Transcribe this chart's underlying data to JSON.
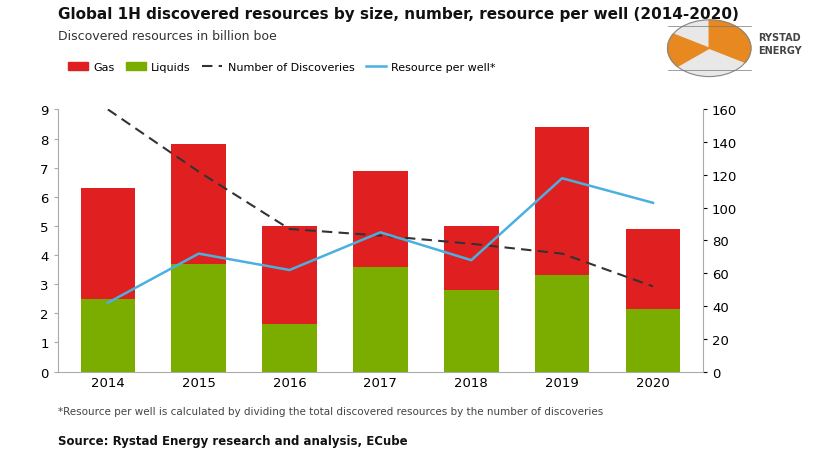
{
  "years": [
    2014,
    2015,
    2016,
    2017,
    2018,
    2019,
    2020
  ],
  "liquids": [
    2.5,
    3.7,
    1.65,
    3.6,
    2.8,
    3.3,
    2.15
  ],
  "total": [
    6.3,
    7.8,
    5.0,
    6.9,
    5.0,
    8.4,
    4.9
  ],
  "num_discoveries": [
    160,
    122,
    87,
    83,
    78,
    72,
    52
  ],
  "resource_per_well": [
    42,
    72,
    62,
    85,
    68,
    118,
    103
  ],
  "bar_width": 0.6,
  "gas_color": "#e02020",
  "liquids_color": "#7aad00",
  "discoveries_color": "#333333",
  "resource_color": "#4ab0e0",
  "title": "Global 1H discovered resources by size, number, resource per well (2014-2020)",
  "subtitle": "Discovered resources in billion boe",
  "ylim_left": [
    0,
    9
  ],
  "ylim_right": [
    0,
    160
  ],
  "yticks_left": [
    0,
    1,
    2,
    3,
    4,
    5,
    6,
    7,
    8,
    9
  ],
  "yticks_right": [
    0,
    20,
    40,
    60,
    80,
    100,
    120,
    140,
    160
  ],
  "footnote": "*Resource per well is calculated by dividing the total discovered resources by the number of discoveries",
  "source": "Source: Rystad Energy research and analysis, ECube",
  "bg_color": "#ffffff"
}
